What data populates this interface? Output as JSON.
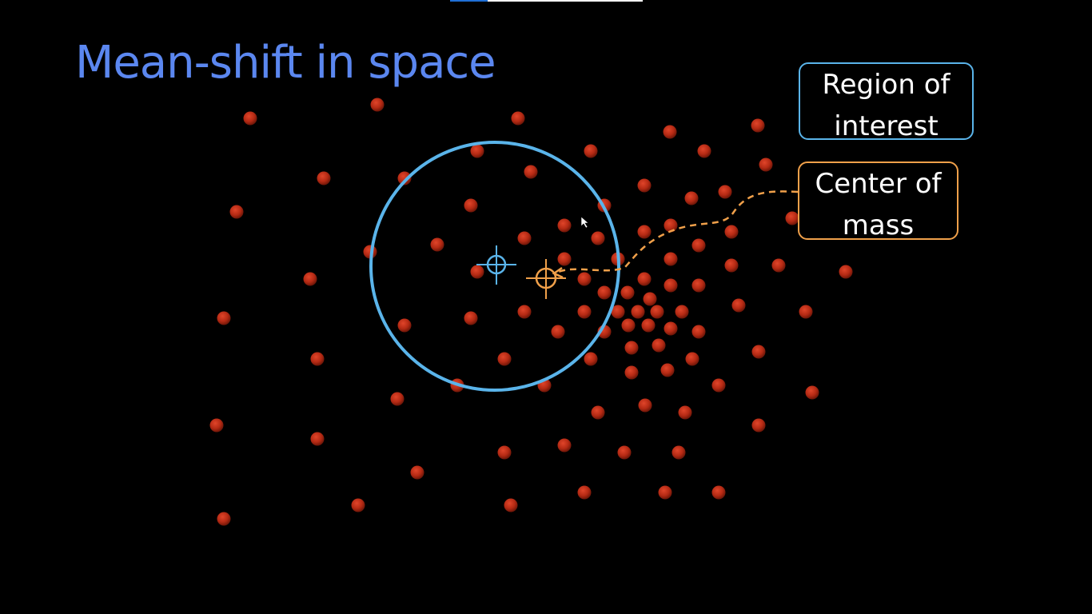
{
  "slide": {
    "title": "Mean-shift in space"
  },
  "labels": {
    "region_of_interest": "Region of interest",
    "center_of_mass": "Center of mass"
  },
  "colors": {
    "background": "#000000",
    "title": "#5b87f0",
    "region": "#5ab4ea",
    "center": "#f0a04a",
    "point": "#b52a14"
  },
  "icons": {
    "roi_center": "crosshair-icon",
    "mass_center": "crosshair-icon"
  }
}
